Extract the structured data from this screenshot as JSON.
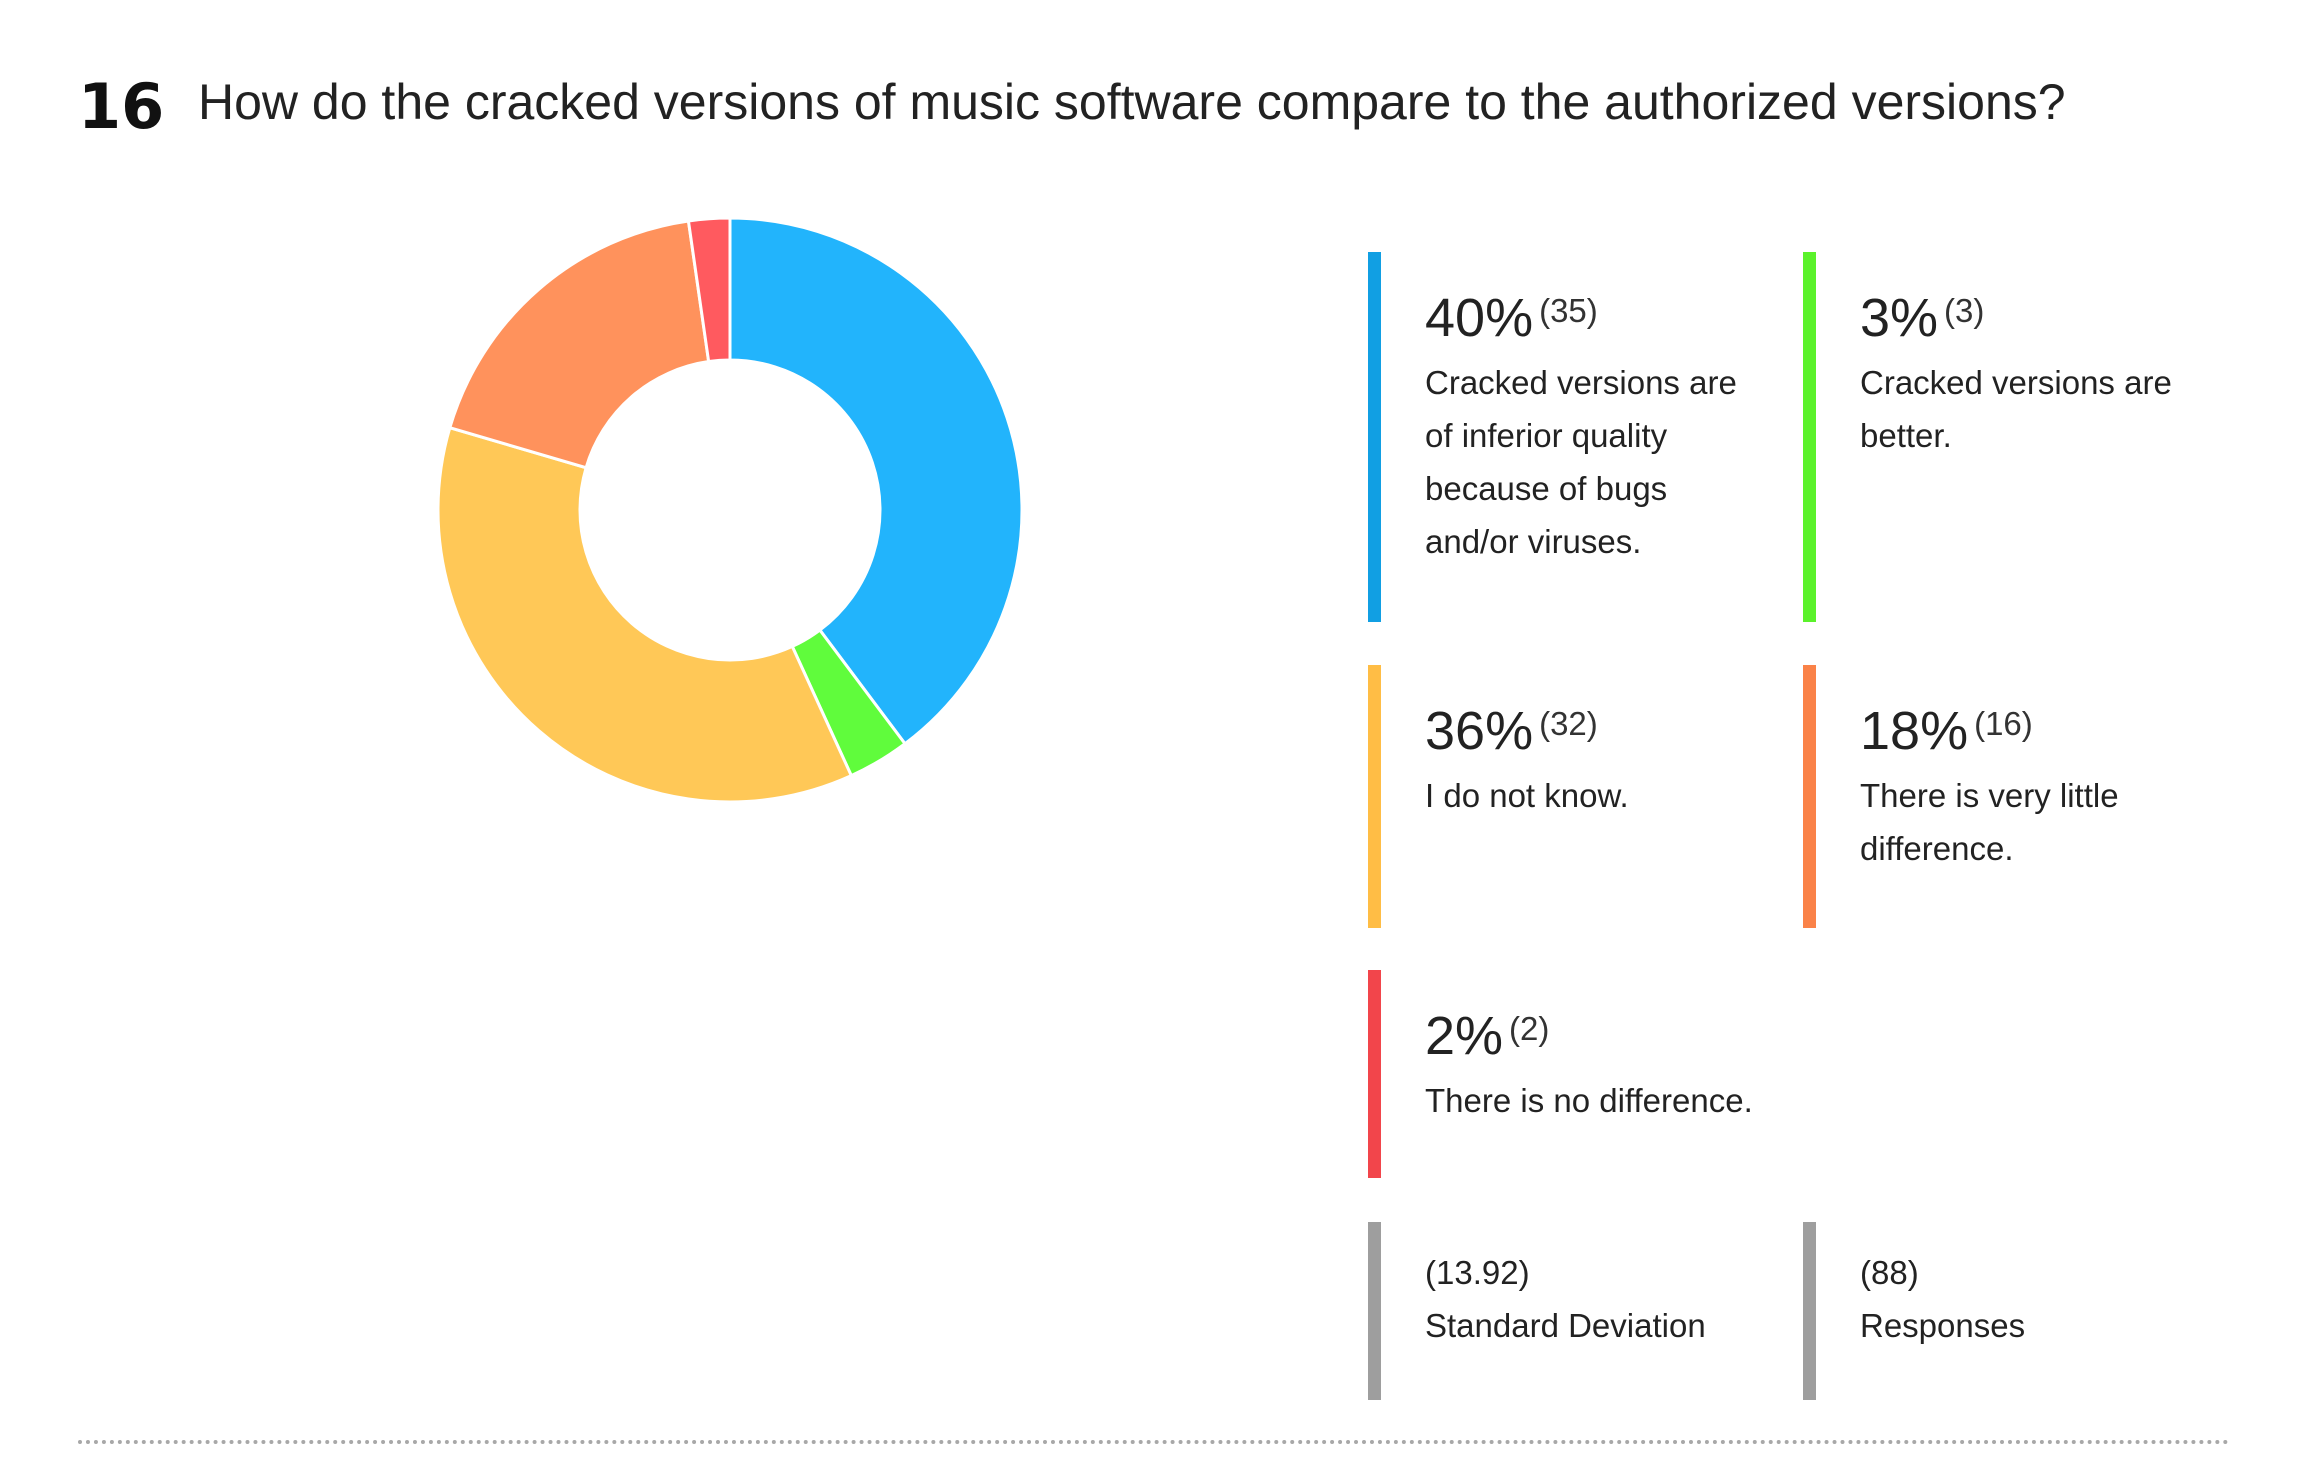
{
  "question": {
    "number": "16",
    "text": "How do the cracked versions of music software compare to the authorized versions?"
  },
  "chart_data": {
    "type": "pie",
    "title": "How do the cracked versions of music software compare to the authorized versions?",
    "donut": true,
    "slices": [
      {
        "label": "Cracked versions are of inferior quality because of bugs and/or viruses.",
        "percent_label": "40%",
        "count_label": "(35)",
        "value": 35,
        "color": "#22B4FC"
      },
      {
        "label": "Cracked versions are better.",
        "percent_label": "3%",
        "count_label": "(3)",
        "value": 3,
        "color": "#60FC3C"
      },
      {
        "label": "I do not know.",
        "percent_label": "36%",
        "count_label": "(32)",
        "value": 32,
        "color": "#FFC857"
      },
      {
        "label": "There is very little difference.",
        "percent_label": "18%",
        "count_label": "(16)",
        "value": 16,
        "color": "#FF925C"
      },
      {
        "label": "There is no difference.",
        "percent_label": "2%",
        "count_label": "(2)",
        "value": 2,
        "color": "#FF5A5F"
      }
    ]
  },
  "legend_colors": {
    "cracked_inferior": "#119FE3",
    "cracked_better": "#5BF22B",
    "do_not_know": "#FFBD45",
    "little_difference": "#FA8248",
    "no_difference": "#F2454B",
    "stats": "#9E9E9E"
  },
  "stats": {
    "std_dev_value": "(13.92)",
    "std_dev_label": "Standard Deviation",
    "responses_value": "(88)",
    "responses_label": "Responses"
  }
}
